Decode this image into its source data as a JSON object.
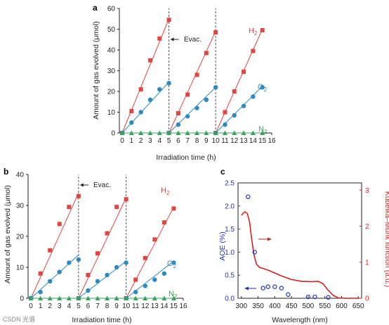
{
  "colors": {
    "H2": "#e0453f",
    "O2": "#2d8ac1",
    "N2": "#3aa35b",
    "AOE": "#2233bb",
    "KM": "#d91f1f",
    "axis": "#222222"
  },
  "watermark": "CSDN 光谱",
  "chart_data": [
    {
      "panel": "a",
      "type": "scatter",
      "xlabel": "Irradiation time (h)",
      "ylabel": "Amount of gas evolved (μmol)",
      "xlim": [
        -0.3,
        16
      ],
      "ylim": [
        0,
        60
      ],
      "xticks": [
        0,
        1,
        2,
        3,
        4,
        5,
        6,
        7,
        8,
        9,
        10,
        11,
        12,
        13,
        14,
        15,
        16
      ],
      "yticks": [
        0,
        10,
        20,
        30,
        40,
        50,
        60
      ],
      "evac_times": [
        5,
        10
      ],
      "annotation": "Evac.",
      "series": [
        {
          "name": "H2",
          "label_main": "H",
          "label_sub": "2",
          "marker": "square",
          "x": [
            0,
            1,
            2,
            3,
            4,
            5
          ],
          "y_cycles": [
            [
              0,
              10.5,
              21,
              35,
              45.5,
              54.5
            ],
            [
              0,
              9.5,
              18.5,
              28,
              38.5,
              48.5
            ],
            [
              0,
              10,
              20,
              29.5,
              39.5,
              49.5
            ]
          ],
          "fit_end": [
            55,
            49,
            50
          ]
        },
        {
          "name": "O2",
          "label_main": "O",
          "label_sub": "2",
          "marker": "circle",
          "x": [
            0,
            1,
            2,
            3,
            4,
            5
          ],
          "y_cycles": [
            [
              0,
              5,
              10,
              16,
              21,
              24
            ],
            [
              0,
              4,
              8,
              12,
              16,
              22
            ],
            [
              0,
              4,
              8.5,
              13,
              17.5,
              22
            ]
          ],
          "fit_end": [
            24.5,
            22,
            22.5
          ]
        },
        {
          "name": "N2",
          "label_main": "N",
          "label_sub": "2",
          "marker": "triangle",
          "x": [
            0,
            1,
            2,
            3,
            4,
            5
          ],
          "y_cycles": [
            [
              0,
              0,
              0,
              0,
              0,
              0
            ],
            [
              0,
              0,
              0,
              0,
              0,
              0
            ],
            [
              0,
              0,
              0,
              0,
              0,
              0
            ]
          ],
          "fit_end": [
            0,
            0,
            0
          ]
        }
      ]
    },
    {
      "panel": "b",
      "type": "scatter",
      "xlabel": "Irradiation time (h)",
      "ylabel": "Amount of gas evolved (μmol)",
      "xlim": [
        -0.3,
        16
      ],
      "ylim": [
        0,
        40
      ],
      "xticks": [
        0,
        1,
        2,
        3,
        4,
        5,
        6,
        7,
        8,
        9,
        10,
        11,
        12,
        13,
        14,
        15,
        16
      ],
      "yticks": [
        0,
        10,
        20,
        30,
        40
      ],
      "evac_times": [
        5,
        10
      ],
      "annotation": "Evac.",
      "series": [
        {
          "name": "H2",
          "label_main": "H",
          "label_sub": "2",
          "marker": "square",
          "x": [
            0,
            1,
            2,
            3,
            4,
            5
          ],
          "y_cycles": [
            [
              0,
              8,
              15.5,
              24,
              29.5,
              33
            ],
            [
              0,
              7.5,
              14.5,
              21,
              29.5,
              32
            ],
            [
              0,
              6,
              13,
              19,
              24.5,
              29
            ]
          ],
          "fit_end": [
            34,
            32.5,
            29.5
          ]
        },
        {
          "name": "O2",
          "label_main": "O",
          "label_sub": "2",
          "marker": "circle",
          "x": [
            0,
            1,
            2,
            3,
            4,
            5
          ],
          "y_cycles": [
            [
              0,
              2,
              5.5,
              8.5,
              11.5,
              12.5
            ],
            [
              0,
              2.5,
              5.5,
              7.5,
              10,
              11.5
            ],
            [
              0,
              2,
              4,
              6,
              8,
              11.5
            ]
          ],
          "fit_end": [
            14,
            12,
            12
          ]
        },
        {
          "name": "N2",
          "label_main": "N",
          "label_sub": "2",
          "marker": "triangle",
          "x": [
            0,
            1,
            2,
            3,
            4,
            5
          ],
          "y_cycles": [
            [
              0,
              0,
              0,
              0,
              0,
              0
            ],
            [
              0,
              0,
              0,
              0,
              0,
              0
            ],
            [
              0,
              0,
              0,
              0,
              0,
              0
            ]
          ],
          "fit_end": [
            0,
            0,
            0
          ]
        }
      ]
    },
    {
      "panel": "c",
      "type": "line",
      "xlabel": "Wavelength (nm)",
      "ylabel": "AOE (%)",
      "ylabel_right": "Kubelka–Munk function (a.u.)",
      "xlim": [
        290,
        660
      ],
      "ylim": [
        0,
        2.5
      ],
      "ylim_right": [
        0,
        3.2
      ],
      "xticks": [
        300,
        350,
        400,
        450,
        500,
        550,
        600,
        650
      ],
      "yticks": [
        0.0,
        0.5,
        1.0,
        1.5,
        2.0,
        2.5
      ],
      "yticks_right": [
        0,
        1,
        2,
        3
      ],
      "aoe": {
        "x": [
          320,
          340,
          365,
          380,
          400,
          420,
          440,
          500,
          520,
          560
        ],
        "y": [
          2.2,
          1.0,
          0.22,
          0.25,
          0.25,
          0.22,
          0.08,
          0.03,
          0.03,
          0.02
        ]
      },
      "km": {
        "x": [
          300,
          310,
          318,
          325,
          330,
          338,
          345,
          355,
          365,
          380,
          400,
          420,
          450,
          480,
          510,
          530,
          545,
          560,
          575,
          590,
          610,
          650
        ],
        "y": [
          2.3,
          2.4,
          2.35,
          2.1,
          1.7,
          1.2,
          0.95,
          0.85,
          0.83,
          0.78,
          0.7,
          0.62,
          0.52,
          0.47,
          0.46,
          0.47,
          0.4,
          0.22,
          0.08,
          0.01,
          0.0,
          0.0
        ]
      }
    }
  ]
}
